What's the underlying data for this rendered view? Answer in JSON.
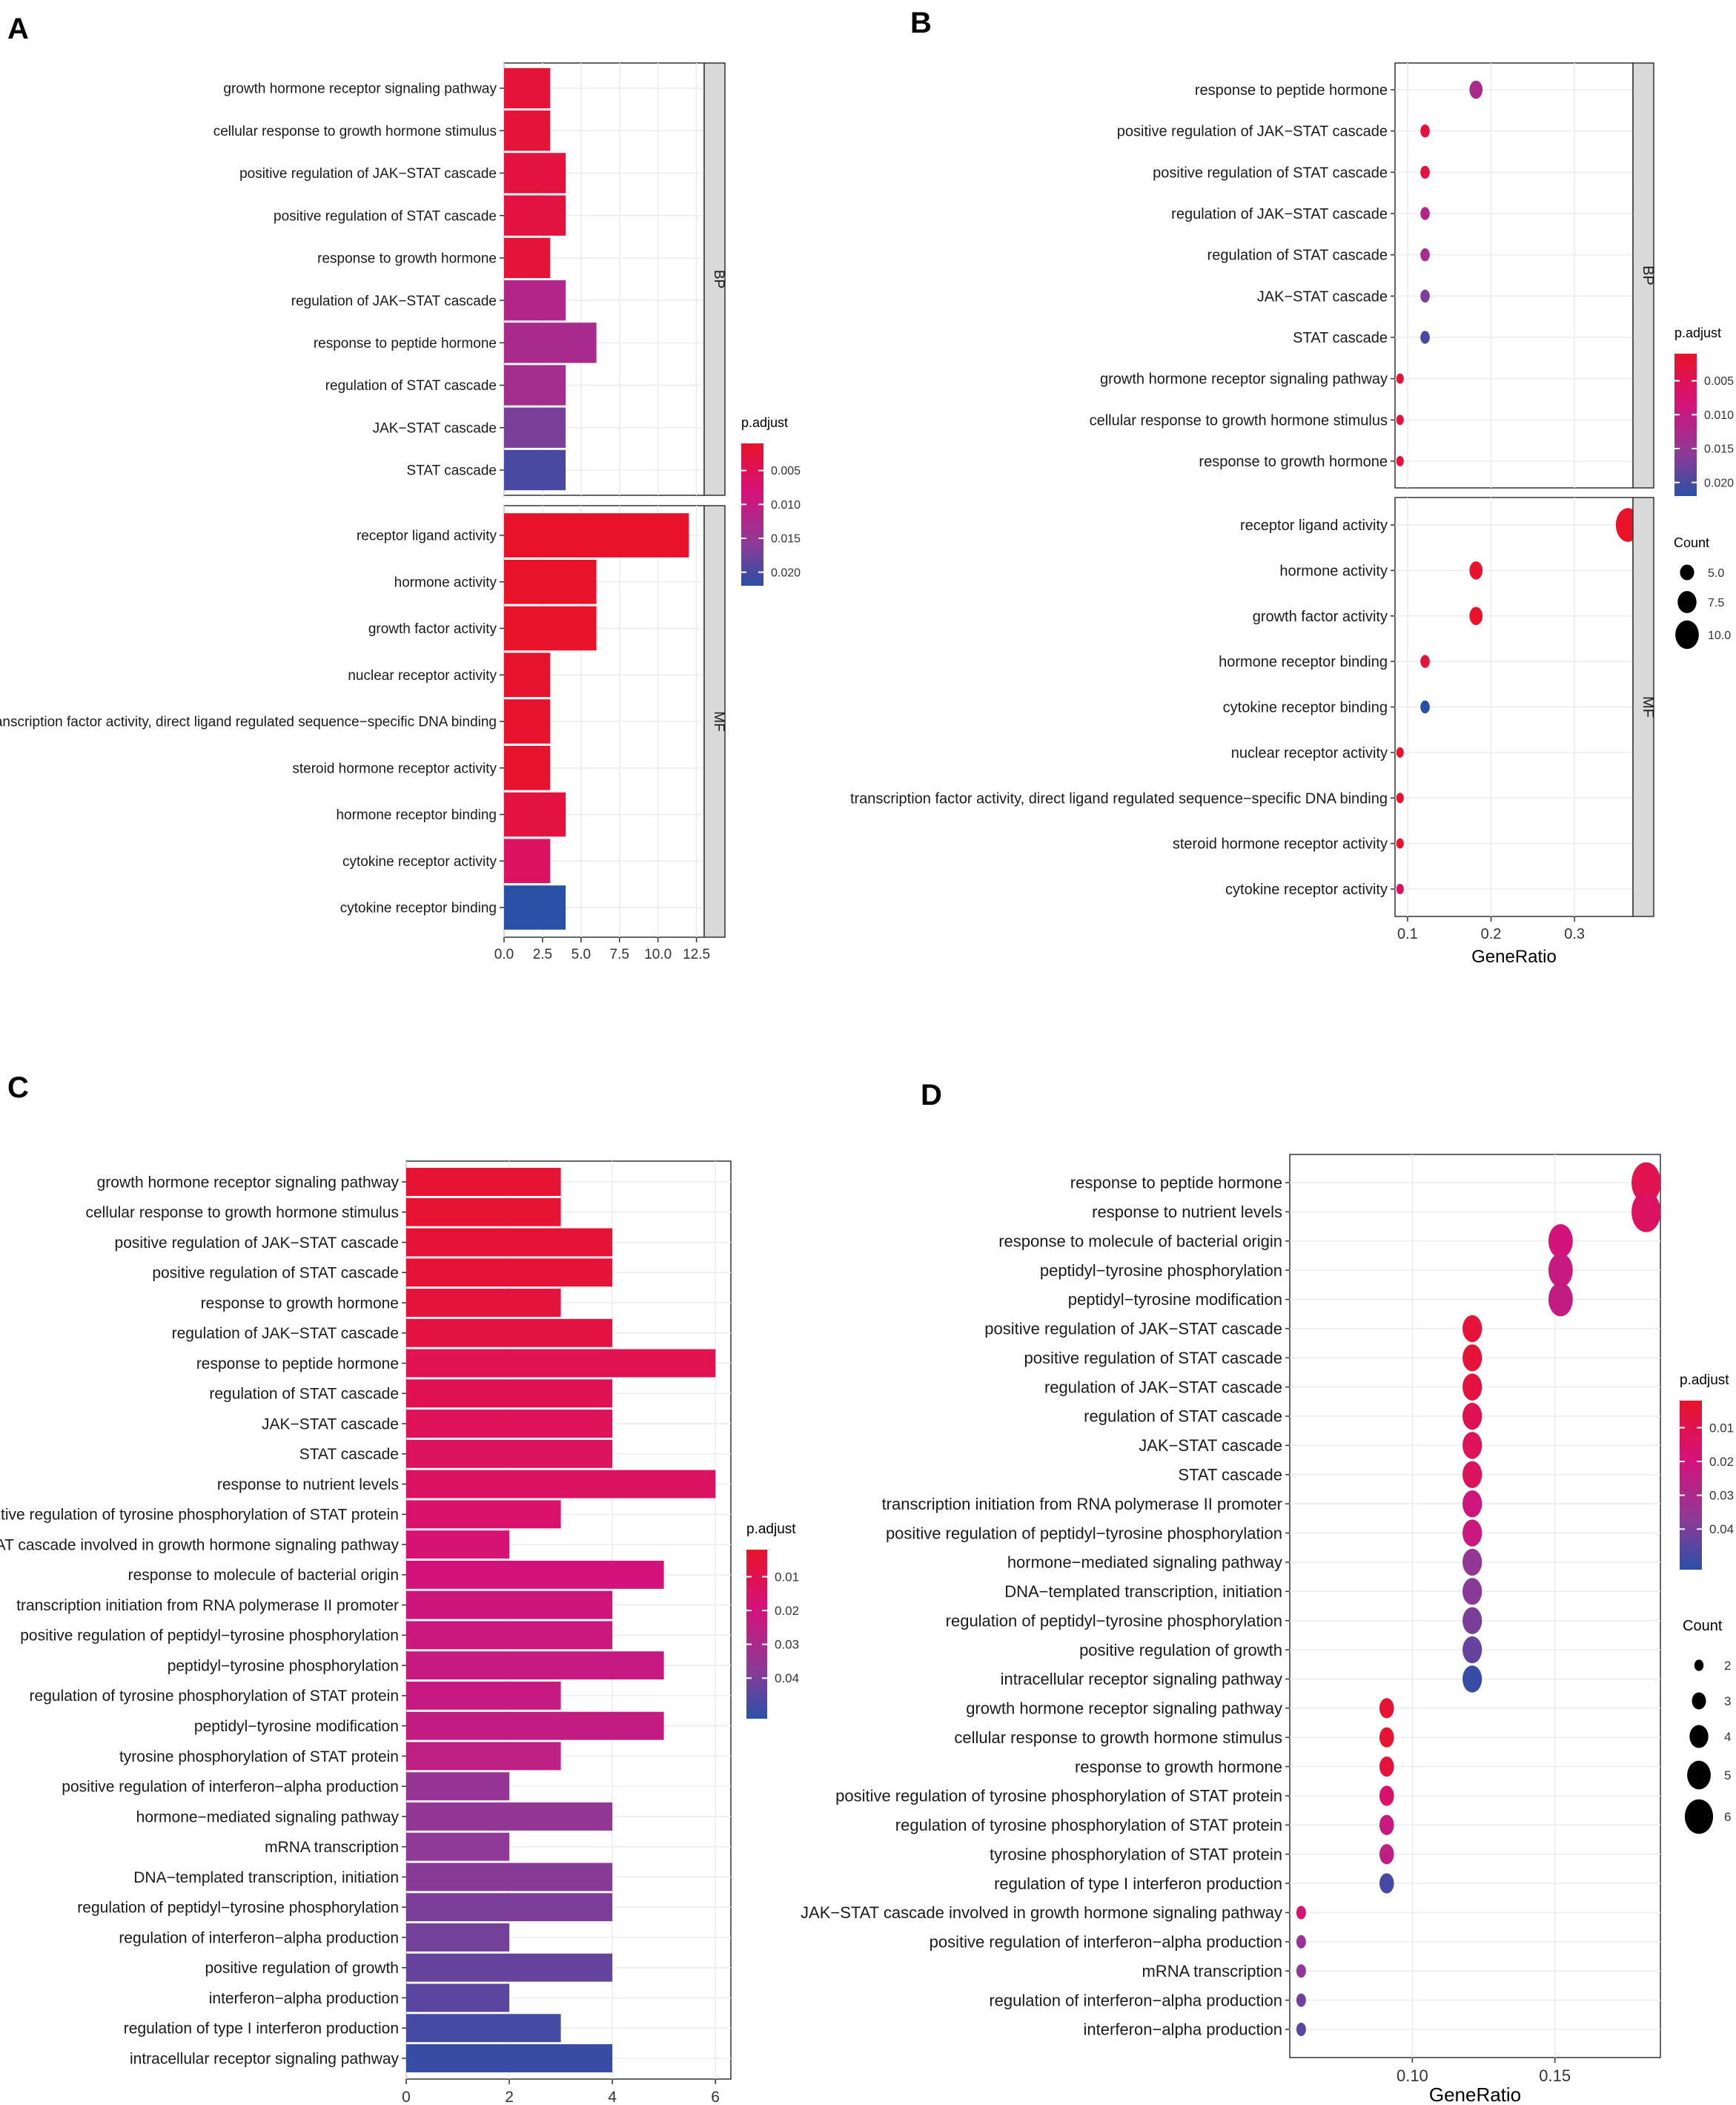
{
  "figure": {
    "panel_labels": [
      "A",
      "B",
      "C",
      "D"
    ]
  },
  "colors": {
    "low_padj": "#E8132A",
    "mid_padj": "#D4127A",
    "purple": "#8E3A96",
    "high_padj": "#2A50A6",
    "strip_bg": "#D9D9D9",
    "grid": "#EBEBEB",
    "panel_border": "#333333"
  },
  "chart_data": [
    {
      "panel": "A",
      "type": "bar",
      "orientation": "horizontal",
      "facets": [
        {
          "name": "BP",
          "categories": [
            "growth hormone receptor signaling pathway",
            "cellular response to growth hormone stimulus",
            "positive regulation of JAK−STAT cascade",
            "positive regulation of STAT cascade",
            "response to growth hormone",
            "regulation of JAK−STAT cascade",
            "response to peptide hormone",
            "regulation of STAT cascade",
            "JAK−STAT cascade",
            "STAT cascade"
          ],
          "values": [
            3,
            3,
            4,
            4,
            3,
            4,
            6,
            4,
            4,
            4
          ],
          "p_adjust": [
            0.0025,
            0.0025,
            0.003,
            0.003,
            0.0025,
            0.012,
            0.013,
            0.0135,
            0.017,
            0.02
          ]
        },
        {
          "name": "MF",
          "categories": [
            "receptor ligand activity",
            "hormone activity",
            "growth factor activity",
            "nuclear receptor activity",
            "transcription factor activity, direct ligand regulated sequence−specific DNA binding",
            "steroid hormone receptor activity",
            "hormone receptor binding",
            "cytokine receptor activity",
            "cytokine receptor binding"
          ],
          "values": [
            12,
            6,
            6,
            3,
            3,
            3,
            4,
            3,
            4
          ],
          "p_adjust": [
            0.0008,
            0.001,
            0.001,
            0.0012,
            0.0012,
            0.0012,
            0.003,
            0.006,
            0.022
          ]
        }
      ],
      "xlim": [
        0,
        13
      ],
      "xticks": [
        0,
        2.5,
        5,
        7.5,
        10,
        12.5
      ],
      "xtick_labels": [
        "0.0",
        "2.5",
        "5.0",
        "7.5",
        "10.0",
        "12.5"
      ],
      "xlabel": "",
      "legend": {
        "title": "p.adjust",
        "range": [
          0.001,
          0.022
        ],
        "ticks": [
          0.005,
          0.01,
          0.015,
          0.02
        ],
        "tick_labels": [
          "0.005",
          "0.010",
          "0.015",
          "0.020"
        ],
        "placement": "right"
      }
    },
    {
      "panel": "B",
      "type": "scatter",
      "facets": [
        {
          "name": "BP",
          "categories": [
            "response to peptide hormone",
            "positive regulation of JAK−STAT cascade",
            "positive regulation of STAT cascade",
            "regulation of JAK−STAT cascade",
            "regulation of STAT cascade",
            "JAK−STAT cascade",
            "STAT cascade",
            "growth hormone receptor signaling pathway",
            "cellular response to growth hormone stimulus",
            "response to growth hormone"
          ],
          "gene_ratio": [
            0.182,
            0.121,
            0.121,
            0.121,
            0.121,
            0.121,
            0.121,
            0.091,
            0.091,
            0.091
          ],
          "count": [
            6,
            4,
            4,
            4,
            4,
            4,
            4,
            3,
            3,
            3
          ],
          "p_adjust": [
            0.013,
            0.003,
            0.003,
            0.012,
            0.0135,
            0.017,
            0.02,
            0.0025,
            0.0025,
            0.0025
          ]
        },
        {
          "name": "MF",
          "categories": [
            "receptor ligand activity",
            "hormone activity",
            "growth factor activity",
            "hormone receptor binding",
            "cytokine receptor binding",
            "nuclear receptor activity",
            "transcription factor activity, direct ligand regulated sequence−specific DNA binding",
            "steroid hormone receptor activity",
            "cytokine receptor activity"
          ],
          "gene_ratio": [
            0.364,
            0.182,
            0.182,
            0.121,
            0.121,
            0.091,
            0.091,
            0.091,
            0.091
          ],
          "count": [
            12,
            6,
            6,
            4,
            4,
            3,
            3,
            3,
            3
          ],
          "p_adjust": [
            0.0008,
            0.001,
            0.001,
            0.003,
            0.022,
            0.0012,
            0.0012,
            0.0012,
            0.006
          ]
        }
      ],
      "xlim": [
        0.085,
        0.37
      ],
      "xticks": [
        0.1,
        0.2,
        0.3
      ],
      "xtick_labels": [
        "0.1",
        "0.2",
        "0.3"
      ],
      "xlabel": "GeneRatio",
      "legend": {
        "title": "p.adjust",
        "range": [
          0.001,
          0.022
        ],
        "ticks": [
          0.005,
          0.01,
          0.015,
          0.02
        ],
        "tick_labels": [
          "0.005",
          "0.010",
          "0.015",
          "0.020"
        ],
        "count_title": "Count",
        "count_values": [
          5,
          7.5,
          10
        ],
        "count_labels": [
          "5.0",
          "7.5",
          "10.0"
        ],
        "placement": "right"
      }
    },
    {
      "panel": "C",
      "type": "bar",
      "orientation": "horizontal",
      "categories": [
        "growth hormone receptor signaling pathway",
        "cellular response to growth hormone stimulus",
        "positive regulation of JAK−STAT cascade",
        "positive regulation of STAT cascade",
        "response to growth hormone",
        "regulation of JAK−STAT cascade",
        "response to peptide hormone",
        "regulation of STAT cascade",
        "JAK−STAT cascade",
        "STAT cascade",
        "response to nutrient levels",
        "positive regulation of tyrosine phosphorylation of STAT protein",
        "JAK−STAT cascade involved in growth hormone signaling pathway",
        "response to molecule of bacterial origin",
        "transcription initiation from RNA polymerase II promoter",
        "positive regulation of peptidyl−tyrosine phosphorylation",
        "peptidyl−tyrosine phosphorylation",
        "regulation of tyrosine phosphorylation of STAT protein",
        "peptidyl−tyrosine modification",
        "tyrosine phosphorylation of STAT protein",
        "positive regulation of interferon−alpha production",
        "hormone−mediated signaling pathway",
        "mRNA transcription",
        "DNA−templated transcription, initiation",
        "regulation of peptidyl−tyrosine phosphorylation",
        "regulation of interferon−alpha production",
        "positive regulation of growth",
        "interferon−alpha production",
        "regulation of type I interferon production",
        "intracellular receptor signaling pathway"
      ],
      "values": [
        3,
        3,
        4,
        4,
        3,
        4,
        6,
        4,
        4,
        4,
        6,
        3,
        2,
        5,
        4,
        4,
        5,
        3,
        5,
        3,
        2,
        4,
        2,
        4,
        4,
        2,
        4,
        2,
        3,
        4
      ],
      "p_adjust": [
        0.004,
        0.004,
        0.005,
        0.005,
        0.006,
        0.007,
        0.01,
        0.011,
        0.012,
        0.013,
        0.014,
        0.016,
        0.018,
        0.02,
        0.021,
        0.022,
        0.023,
        0.023,
        0.024,
        0.025,
        0.035,
        0.036,
        0.037,
        0.038,
        0.04,
        0.041,
        0.043,
        0.045,
        0.048,
        0.05
      ],
      "xlim": [
        0,
        6.3
      ],
      "xticks": [
        0,
        2,
        4,
        6
      ],
      "xtick_labels": [
        "0",
        "2",
        "4",
        "6"
      ],
      "xlabel": "",
      "legend": {
        "title": "p.adjust",
        "range": [
          0.002,
          0.052
        ],
        "ticks": [
          0.01,
          0.02,
          0.03,
          0.04
        ],
        "tick_labels": [
          "0.01",
          "0.02",
          "0.03",
          "0.04"
        ],
        "placement": "right"
      }
    },
    {
      "panel": "D",
      "type": "scatter",
      "categories": [
        "response to peptide hormone",
        "response to nutrient levels",
        "response to molecule of bacterial origin",
        "peptidyl−tyrosine phosphorylation",
        "peptidyl−tyrosine modification",
        "positive regulation of JAK−STAT cascade",
        "positive regulation of STAT cascade",
        "regulation of JAK−STAT cascade",
        "regulation of STAT cascade",
        "JAK−STAT cascade",
        "STAT cascade",
        "transcription initiation from RNA polymerase II promoter",
        "positive regulation of peptidyl−tyrosine phosphorylation",
        "hormone−mediated signaling pathway",
        "DNA−templated transcription, initiation",
        "regulation of peptidyl−tyrosine phosphorylation",
        "positive regulation of growth",
        "intracellular receptor signaling pathway",
        "growth hormone receptor signaling pathway",
        "cellular response to growth hormone stimulus",
        "response to growth hormone",
        "positive regulation of tyrosine phosphorylation of STAT protein",
        "regulation of tyrosine phosphorylation of STAT protein",
        "tyrosine phosphorylation of STAT protein",
        "regulation of type I interferon production",
        "JAK−STAT cascade involved in growth hormone signaling pathway",
        "positive regulation of interferon−alpha production",
        "mRNA transcription",
        "regulation of interferon−alpha production",
        "interferon−alpha production"
      ],
      "gene_ratio": [
        0.182,
        0.182,
        0.152,
        0.152,
        0.152,
        0.121,
        0.121,
        0.121,
        0.121,
        0.121,
        0.121,
        0.121,
        0.121,
        0.121,
        0.121,
        0.121,
        0.121,
        0.121,
        0.091,
        0.091,
        0.091,
        0.091,
        0.091,
        0.091,
        0.091,
        0.061,
        0.061,
        0.061,
        0.061,
        0.061
      ],
      "count": [
        6,
        6,
        5,
        5,
        5,
        4,
        4,
        4,
        4,
        4,
        4,
        4,
        4,
        4,
        4,
        4,
        4,
        4,
        3,
        3,
        3,
        3,
        3,
        3,
        3,
        2,
        2,
        2,
        2,
        2
      ],
      "p_adjust": [
        0.01,
        0.014,
        0.02,
        0.023,
        0.024,
        0.005,
        0.005,
        0.007,
        0.011,
        0.012,
        0.013,
        0.021,
        0.022,
        0.036,
        0.038,
        0.04,
        0.043,
        0.05,
        0.004,
        0.004,
        0.006,
        0.016,
        0.023,
        0.025,
        0.048,
        0.018,
        0.035,
        0.037,
        0.041,
        0.045
      ],
      "xlim": [
        0.057,
        0.187
      ],
      "xticks": [
        0.1,
        0.15
      ],
      "xtick_labels": [
        "0.10",
        "0.15"
      ],
      "xlabel": "GeneRatio",
      "legend": {
        "title": "p.adjust",
        "range": [
          0.002,
          0.052
        ],
        "ticks": [
          0.01,
          0.02,
          0.03,
          0.04
        ],
        "tick_labels": [
          "0.01",
          "0.02",
          "0.03",
          "0.04"
        ],
        "count_title": "Count",
        "count_values": [
          2,
          3,
          4,
          5,
          6
        ],
        "count_labels": [
          "2",
          "3",
          "4",
          "5",
          "6"
        ],
        "placement": "right"
      }
    }
  ]
}
